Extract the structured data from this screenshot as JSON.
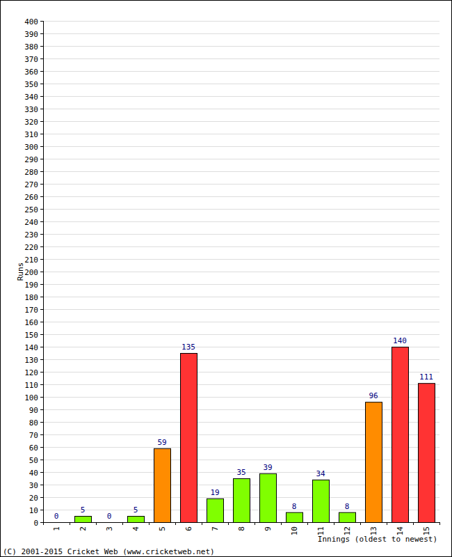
{
  "chart_data": {
    "type": "bar",
    "x_label": "Innings (oldest to newest)",
    "y_label": "Runs",
    "annotations": [
      "(C) 2001-2015 Cricket Web (www.cricketweb.net)"
    ],
    "categories": [
      "1",
      "2",
      "3",
      "4",
      "5",
      "6",
      "7",
      "8",
      "9",
      "10",
      "11",
      "12",
      "13",
      "14",
      "15"
    ],
    "values": [
      0,
      5,
      0,
      5,
      59,
      135,
      19,
      35,
      39,
      8,
      34,
      8,
      96,
      140,
      111
    ],
    "colors": [
      "#80ff00",
      "#80ff00",
      "#80ff00",
      "#80ff00",
      "#ff8c00",
      "#ff3333",
      "#80ff00",
      "#80ff00",
      "#80ff00",
      "#80ff00",
      "#80ff00",
      "#80ff00",
      "#ff8c00",
      "#ff3333",
      "#ff3333"
    ],
    "ylim": [
      0,
      400
    ],
    "yticks": [
      0,
      10,
      20,
      30,
      40,
      50,
      60,
      70,
      80,
      90,
      100,
      110,
      120,
      130,
      140,
      150,
      160,
      170,
      180,
      190,
      200,
      210,
      220,
      230,
      240,
      250,
      260,
      270,
      280,
      290,
      300,
      310,
      320,
      330,
      340,
      350,
      360,
      370,
      380,
      390,
      400
    ],
    "grid": true,
    "data_labels": true
  }
}
